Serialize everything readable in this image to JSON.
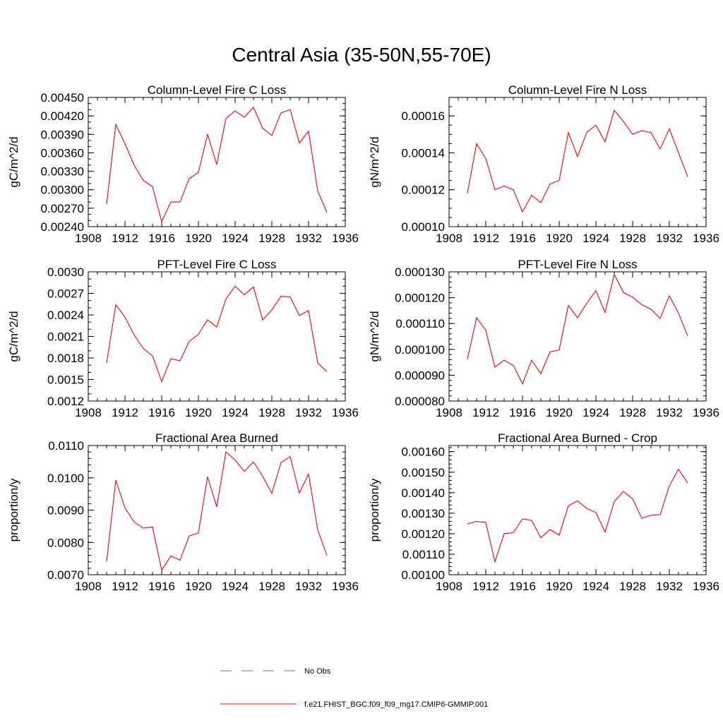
{
  "page": {
    "title": "Central Asia (35-50N,55-70E)"
  },
  "chart_data": [
    {
      "type": "line",
      "title": "Column-Level Fire C Loss",
      "ylabel": "gC/m^2/d",
      "xlim": [
        1908,
        1936
      ],
      "ylim": [
        0.0024,
        0.0045
      ],
      "x_ticks": [
        1908,
        1912,
        1916,
        1920,
        1924,
        1928,
        1932,
        1936
      ],
      "x_tick_labels": [
        "1908",
        "1912",
        "1916",
        "1920",
        "1924",
        "1928",
        "1932",
        "1936"
      ],
      "y_ticks": [
        0.0024,
        0.0027,
        0.003,
        0.0033,
        0.0036,
        0.0039,
        0.0042,
        0.0045
      ],
      "y_tick_labels": [
        "0.00240",
        "0.00270",
        "0.00300",
        "0.00330",
        "0.00360",
        "0.00390",
        "0.00420",
        "0.00450"
      ],
      "y_minor": 0.0001,
      "series": [
        {
          "color": "#ff0000",
          "x": [
            1910,
            1911,
            1912,
            1913,
            1914,
            1915,
            1916,
            1917,
            1918,
            1919,
            1920,
            1921,
            1922,
            1923,
            1924,
            1925,
            1926,
            1927,
            1928,
            1929,
            1930,
            1931,
            1932,
            1933,
            1934
          ],
          "y": [
            0.00276,
            0.00406,
            0.00375,
            0.0034,
            0.00315,
            0.00305,
            0.00248,
            0.0028,
            0.0028,
            0.00318,
            0.00328,
            0.0039,
            0.00341,
            0.00416,
            0.00428,
            0.00418,
            0.00434,
            0.004,
            0.00388,
            0.00425,
            0.0043,
            0.00376,
            0.00395,
            0.00298,
            0.00263
          ]
        }
      ]
    },
    {
      "type": "line",
      "title": "Column-Level Fire N Loss",
      "ylabel": "gN/m^2/d",
      "xlim": [
        1908,
        1936
      ],
      "ylim": [
        0.0001,
        0.00017
      ],
      "x_ticks": [
        1908,
        1912,
        1916,
        1920,
        1924,
        1928,
        1932,
        1936
      ],
      "x_tick_labels": [
        "1908",
        "1912",
        "1916",
        "1920",
        "1924",
        "1928",
        "1932",
        "1936"
      ],
      "y_ticks": [
        0.0001,
        0.00012,
        0.00014,
        0.00016
      ],
      "y_tick_labels": [
        "0.00010",
        "0.00012",
        "0.00014",
        "0.00016"
      ],
      "y_minor": 5e-06,
      "series": [
        {
          "color": "#ff0000",
          "x": [
            1910,
            1911,
            1912,
            1913,
            1914,
            1915,
            1916,
            1917,
            1918,
            1919,
            1920,
            1921,
            1922,
            1923,
            1924,
            1925,
            1926,
            1927,
            1928,
            1929,
            1930,
            1931,
            1932,
            1933,
            1934
          ],
          "y": [
            0.000118,
            0.000145,
            0.000137,
            0.00012,
            0.000122,
            0.00012,
            0.000108,
            0.000117,
            0.000113,
            0.000123,
            0.000125,
            0.000151,
            0.000138,
            0.000151,
            0.000155,
            0.000146,
            0.000163,
            0.000157,
            0.00015,
            0.000152,
            0.000151,
            0.000142,
            0.000153,
            0.00014,
            0.000127
          ]
        }
      ]
    },
    {
      "type": "line",
      "title": "PFT-Level Fire C Loss",
      "ylabel": "gC/m^2/d",
      "xlim": [
        1908,
        1936
      ],
      "ylim": [
        0.0012,
        0.003
      ],
      "x_ticks": [
        1908,
        1912,
        1916,
        1920,
        1924,
        1928,
        1932,
        1936
      ],
      "x_tick_labels": [
        "1908",
        "1912",
        "1916",
        "1920",
        "1924",
        "1928",
        "1932",
        "1936"
      ],
      "y_ticks": [
        0.0012,
        0.0015,
        0.0018,
        0.0021,
        0.0024,
        0.0027,
        0.003
      ],
      "y_tick_labels": [
        "0.0012",
        "0.0015",
        "0.0018",
        "0.0021",
        "0.0024",
        "0.0027",
        "0.0030"
      ],
      "y_minor": 0.0001,
      "series": [
        {
          "color": "#ff0000",
          "x": [
            1910,
            1911,
            1912,
            1913,
            1914,
            1915,
            1916,
            1917,
            1918,
            1919,
            1920,
            1921,
            1922,
            1923,
            1924,
            1925,
            1926,
            1927,
            1928,
            1929,
            1930,
            1931,
            1932,
            1933,
            1934
          ],
          "y": [
            0.00173,
            0.00254,
            0.00237,
            0.00212,
            0.00193,
            0.00183,
            0.00147,
            0.00179,
            0.00176,
            0.00203,
            0.00213,
            0.00233,
            0.00223,
            0.00262,
            0.0028,
            0.00268,
            0.00279,
            0.00233,
            0.00247,
            0.00266,
            0.00265,
            0.00239,
            0.00246,
            0.00173,
            0.00161
          ]
        }
      ]
    },
    {
      "type": "line",
      "title": "PFT-Level Fire N Loss",
      "ylabel": "gN/m^2/d",
      "xlim": [
        1908,
        1936
      ],
      "ylim": [
        8e-05,
        0.00013
      ],
      "x_ticks": [
        1908,
        1912,
        1916,
        1920,
        1924,
        1928,
        1932,
        1936
      ],
      "x_tick_labels": [
        "1908",
        "1912",
        "1916",
        "1920",
        "1924",
        "1928",
        "1932",
        "1936"
      ],
      "y_ticks": [
        8e-05,
        9e-05,
        0.0001,
        0.00011,
        0.00012,
        0.00013
      ],
      "y_tick_labels": [
        "0.000080",
        "0.000090",
        "0.000100",
        "0.000110",
        "0.000120",
        "0.000130"
      ],
      "y_minor": 2e-06,
      "series": [
        {
          "color": "#ff0000",
          "x": [
            1910,
            1911,
            1912,
            1913,
            1914,
            1915,
            1916,
            1917,
            1918,
            1919,
            1920,
            1921,
            1922,
            1923,
            1924,
            1925,
            1926,
            1927,
            1928,
            1929,
            1930,
            1931,
            1932,
            1933,
            1934
          ],
          "y": [
            9.62e-05,
            0.0001122,
            0.0001074,
            9.31e-05,
            9.58e-05,
            9.38e-05,
            8.66e-05,
            9.58e-05,
            9.06e-05,
            9.9e-05,
            9.98e-05,
            0.000117,
            0.0001122,
            0.0001178,
            0.0001227,
            0.0001143,
            0.000129,
            0.000122,
            0.0001202,
            0.0001173,
            0.0001155,
            0.000112,
            0.0001207,
            0.000114,
            0.0001052
          ]
        }
      ]
    },
    {
      "type": "line",
      "title": "Fractional Area Burned",
      "ylabel": "proportion/y",
      "xlim": [
        1908,
        1936
      ],
      "ylim": [
        0.007,
        0.011
      ],
      "x_ticks": [
        1908,
        1912,
        1916,
        1920,
        1924,
        1928,
        1932,
        1936
      ],
      "x_tick_labels": [
        "1908",
        "1912",
        "1916",
        "1920",
        "1924",
        "1928",
        "1932",
        "1936"
      ],
      "y_ticks": [
        0.007,
        0.008,
        0.009,
        0.01,
        0.011
      ],
      "y_tick_labels": [
        "0.0070",
        "0.0080",
        "0.0090",
        "0.0100",
        "0.0110"
      ],
      "y_minor": 0.0002,
      "series": [
        {
          "color": "#ff0000",
          "x": [
            1910,
            1911,
            1912,
            1913,
            1914,
            1915,
            1916,
            1917,
            1918,
            1919,
            1920,
            1921,
            1922,
            1923,
            1924,
            1925,
            1926,
            1927,
            1928,
            1929,
            1930,
            1931,
            1932,
            1933,
            1934
          ],
          "y": [
            0.0074,
            0.00993,
            0.00907,
            0.00863,
            0.00844,
            0.00848,
            0.00714,
            0.00758,
            0.00745,
            0.0082,
            0.00829,
            0.01003,
            0.0091,
            0.0108,
            0.01055,
            0.0102,
            0.01049,
            0.01005,
            0.00952,
            0.01047,
            0.01066,
            0.00953,
            0.01012,
            0.00839,
            0.0076
          ]
        }
      ]
    },
    {
      "type": "line",
      "title": "Fractional Area Burned - Crop",
      "ylabel": "proportion/y",
      "xlim": [
        1908,
        1936
      ],
      "ylim": [
        0.001,
        0.00163
      ],
      "x_ticks": [
        1908,
        1912,
        1916,
        1920,
        1924,
        1928,
        1932,
        1936
      ],
      "x_tick_labels": [
        "1908",
        "1912",
        "1916",
        "1920",
        "1924",
        "1928",
        "1932",
        "1936"
      ],
      "y_ticks": [
        0.001,
        0.0011,
        0.0012,
        0.0013,
        0.0014,
        0.0015,
        0.0016
      ],
      "y_tick_labels": [
        "0.00100",
        "0.00110",
        "0.00120",
        "0.00130",
        "0.00140",
        "0.00150",
        "0.00160"
      ],
      "y_minor": 2e-05,
      "series": [
        {
          "color": "#ff0000",
          "x": [
            1910,
            1911,
            1912,
            1913,
            1914,
            1915,
            1916,
            1917,
            1918,
            1919,
            1920,
            1921,
            1922,
            1923,
            1924,
            1925,
            1926,
            1927,
            1928,
            1929,
            1930,
            1931,
            1932,
            1933,
            1934
          ],
          "y": [
            0.001248,
            0.00126,
            0.001255,
            0.001063,
            0.0012,
            0.001205,
            0.001272,
            0.001265,
            0.00118,
            0.00122,
            0.001193,
            0.001336,
            0.00136,
            0.001323,
            0.001303,
            0.001208,
            0.001357,
            0.001406,
            0.00137,
            0.001275,
            0.00129,
            0.001293,
            0.001433,
            0.001515,
            0.001447
          ]
        }
      ]
    }
  ],
  "legend": {
    "items": [
      {
        "label": "No Obs",
        "color": "#6a6ad8",
        "style": "dashed"
      },
      {
        "label": "f.e21.FHIST_BGC.f09_f09_mg17.CMIP6-GMMIP.001",
        "color": "#ff0000",
        "style": "solid"
      }
    ]
  }
}
